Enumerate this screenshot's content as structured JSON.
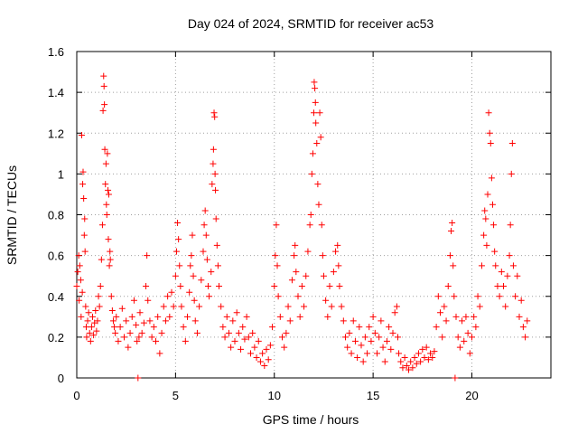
{
  "chart_data": {
    "type": "scatter",
    "title": "Day 024 of 2024, SRMTID for receiver ac53",
    "xlabel": "GPS time / hours",
    "ylabel": "SRMTID / TECUs",
    "xlim": [
      0,
      24
    ],
    "ylim": [
      0,
      1.6
    ],
    "xticks": [
      0,
      5,
      10,
      15,
      20
    ],
    "xtick_labels": [
      "0",
      "5",
      "10",
      "15",
      "20"
    ],
    "yticks": [
      0,
      0.2,
      0.4,
      0.6,
      0.8,
      1,
      1.2,
      1.4,
      1.6
    ],
    "ytick_labels": [
      "0",
      "0.2",
      "0.4",
      "0.6",
      "0.8",
      "1",
      "1.2",
      "1.4",
      "1.6"
    ],
    "grid": true,
    "marker": "+",
    "color": "#ff0000",
    "series": [
      {
        "name": "SRMTID",
        "points": [
          [
            0.0,
            0.45
          ],
          [
            0.05,
            0.52
          ],
          [
            0.1,
            0.6
          ],
          [
            0.12,
            0.38
          ],
          [
            0.15,
            0.55
          ],
          [
            0.2,
            0.48
          ],
          [
            0.22,
            0.3
          ],
          [
            0.25,
            1.19
          ],
          [
            0.28,
            0.42
          ],
          [
            0.3,
            0.95
          ],
          [
            0.32,
            1.01
          ],
          [
            0.35,
            0.88
          ],
          [
            0.38,
            0.7
          ],
          [
            0.4,
            0.78
          ],
          [
            0.42,
            0.62
          ],
          [
            0.45,
            0.35
          ],
          [
            0.48,
            0.25
          ],
          [
            0.5,
            0.2
          ],
          [
            0.55,
            0.28
          ],
          [
            0.6,
            0.32
          ],
          [
            0.65,
            0.22
          ],
          [
            0.7,
            0.18
          ],
          [
            0.75,
            0.25
          ],
          [
            0.8,
            0.3
          ],
          [
            0.85,
            0.21
          ],
          [
            0.9,
            0.27
          ],
          [
            0.95,
            0.33
          ],
          [
            1.0,
            0.23
          ],
          [
            1.05,
            0.28
          ],
          [
            1.1,
            0.4
          ],
          [
            1.15,
            0.35
          ],
          [
            1.2,
            0.45
          ],
          [
            1.25,
            0.58
          ],
          [
            1.3,
            0.75
          ],
          [
            1.33,
            1.31
          ],
          [
            1.36,
            1.48
          ],
          [
            1.38,
            1.43
          ],
          [
            1.4,
            1.34
          ],
          [
            1.42,
            1.12
          ],
          [
            1.45,
            0.95
          ],
          [
            1.48,
            1.05
          ],
          [
            1.5,
            0.85
          ],
          [
            1.52,
            0.8
          ],
          [
            1.55,
            1.1
          ],
          [
            1.58,
            0.92
          ],
          [
            1.6,
            0.68
          ],
          [
            1.62,
            0.9
          ],
          [
            1.65,
            0.55
          ],
          [
            1.68,
            0.62
          ],
          [
            1.7,
            0.58
          ],
          [
            1.75,
            0.4
          ],
          [
            1.8,
            0.33
          ],
          [
            1.85,
            0.28
          ],
          [
            1.9,
            0.25
          ],
          [
            1.95,
            0.22
          ],
          [
            2.0,
            0.3
          ],
          [
            2.1,
            0.18
          ],
          [
            2.2,
            0.25
          ],
          [
            2.3,
            0.34
          ],
          [
            2.4,
            0.2
          ],
          [
            2.5,
            0.28
          ],
          [
            2.6,
            0.15
          ],
          [
            2.7,
            0.22
          ],
          [
            2.8,
            0.3
          ],
          [
            2.9,
            0.38
          ],
          [
            3.0,
            0.26
          ],
          [
            3.05,
            0.18
          ],
          [
            3.1,
            0.0
          ],
          [
            3.15,
            0.2
          ],
          [
            3.2,
            0.32
          ],
          [
            3.3,
            0.22
          ],
          [
            3.4,
            0.27
          ],
          [
            3.5,
            0.45
          ],
          [
            3.55,
            0.6
          ],
          [
            3.6,
            0.38
          ],
          [
            3.7,
            0.28
          ],
          [
            3.8,
            0.2
          ],
          [
            3.9,
            0.25
          ],
          [
            4.0,
            0.18
          ],
          [
            4.1,
            0.3
          ],
          [
            4.2,
            0.12
          ],
          [
            4.3,
            0.22
          ],
          [
            4.4,
            0.35
          ],
          [
            4.5,
            0.28
          ],
          [
            4.6,
            0.4
          ],
          [
            4.7,
            0.3
          ],
          [
            4.8,
            0.42
          ],
          [
            4.9,
            0.35
          ],
          [
            5.0,
            0.5
          ],
          [
            5.05,
            0.62
          ],
          [
            5.1,
            0.76
          ],
          [
            5.15,
            0.68
          ],
          [
            5.2,
            0.55
          ],
          [
            5.25,
            0.45
          ],
          [
            5.3,
            0.35
          ],
          [
            5.4,
            0.25
          ],
          [
            5.5,
            0.18
          ],
          [
            5.6,
            0.3
          ],
          [
            5.7,
            0.42
          ],
          [
            5.75,
            0.55
          ],
          [
            5.8,
            0.6
          ],
          [
            5.85,
            0.7
          ],
          [
            5.9,
            0.5
          ],
          [
            5.95,
            0.38
          ],
          [
            6.0,
            0.28
          ],
          [
            6.1,
            0.22
          ],
          [
            6.2,
            0.35
          ],
          [
            6.3,
            0.48
          ],
          [
            6.4,
            0.62
          ],
          [
            6.45,
            0.75
          ],
          [
            6.5,
            0.82
          ],
          [
            6.55,
            0.7
          ],
          [
            6.6,
            0.58
          ],
          [
            6.65,
            0.45
          ],
          [
            6.7,
            0.4
          ],
          [
            6.8,
            0.52
          ],
          [
            6.85,
            0.95
          ],
          [
            6.9,
            1.05
          ],
          [
            6.92,
            1.12
          ],
          [
            6.95,
            1.3
          ],
          [
            6.98,
            1.28
          ],
          [
            7.0,
            1.0
          ],
          [
            7.02,
            0.92
          ],
          [
            7.05,
            0.78
          ],
          [
            7.1,
            0.65
          ],
          [
            7.15,
            0.55
          ],
          [
            7.2,
            0.45
          ],
          [
            7.3,
            0.35
          ],
          [
            7.4,
            0.25
          ],
          [
            7.5,
            0.2
          ],
          [
            7.6,
            0.3
          ],
          [
            7.7,
            0.22
          ],
          [
            7.8,
            0.15
          ],
          [
            7.9,
            0.28
          ],
          [
            8.0,
            0.18
          ],
          [
            8.1,
            0.32
          ],
          [
            8.2,
            0.22
          ],
          [
            8.3,
            0.14
          ],
          [
            8.4,
            0.25
          ],
          [
            8.5,
            0.19
          ],
          [
            8.6,
            0.3
          ],
          [
            8.7,
            0.2
          ],
          [
            8.8,
            0.12
          ],
          [
            8.9,
            0.22
          ],
          [
            9.0,
            0.15
          ],
          [
            9.1,
            0.1
          ],
          [
            9.2,
            0.18
          ],
          [
            9.3,
            0.08
          ],
          [
            9.4,
            0.12
          ],
          [
            9.5,
            0.06
          ],
          [
            9.6,
            0.14
          ],
          [
            9.7,
            0.09
          ],
          [
            9.8,
            0.16
          ],
          [
            9.9,
            0.25
          ],
          [
            10.0,
            0.45
          ],
          [
            10.05,
            0.6
          ],
          [
            10.1,
            0.75
          ],
          [
            10.15,
            0.55
          ],
          [
            10.2,
            0.4
          ],
          [
            10.3,
            0.3
          ],
          [
            10.4,
            0.2
          ],
          [
            10.5,
            0.15
          ],
          [
            10.6,
            0.22
          ],
          [
            10.7,
            0.35
          ],
          [
            10.8,
            0.28
          ],
          [
            10.9,
            0.48
          ],
          [
            11.0,
            0.6
          ],
          [
            11.05,
            0.65
          ],
          [
            11.1,
            0.52
          ],
          [
            11.2,
            0.4
          ],
          [
            11.3,
            0.3
          ],
          [
            11.4,
            0.45
          ],
          [
            11.5,
            0.35
          ],
          [
            11.6,
            0.5
          ],
          [
            11.7,
            0.62
          ],
          [
            11.8,
            0.75
          ],
          [
            11.85,
            0.8
          ],
          [
            11.9,
            1.0
          ],
          [
            11.95,
            1.1
          ],
          [
            12.0,
            1.3
          ],
          [
            12.02,
            1.45
          ],
          [
            12.05,
            1.42
          ],
          [
            12.08,
            1.35
          ],
          [
            12.1,
            1.25
          ],
          [
            12.15,
            1.15
          ],
          [
            12.2,
            0.95
          ],
          [
            12.25,
            0.85
          ],
          [
            12.3,
            1.3
          ],
          [
            12.35,
            1.18
          ],
          [
            12.4,
            0.75
          ],
          [
            12.45,
            0.6
          ],
          [
            12.5,
            0.5
          ],
          [
            12.6,
            0.38
          ],
          [
            12.7,
            0.3
          ],
          [
            12.8,
            0.45
          ],
          [
            12.9,
            0.35
          ],
          [
            13.0,
            0.52
          ],
          [
            13.1,
            0.62
          ],
          [
            13.2,
            0.65
          ],
          [
            13.25,
            0.55
          ],
          [
            13.3,
            0.45
          ],
          [
            13.4,
            0.35
          ],
          [
            13.5,
            0.28
          ],
          [
            13.6,
            0.2
          ],
          [
            13.7,
            0.15
          ],
          [
            13.8,
            0.22
          ],
          [
            13.9,
            0.12
          ],
          [
            14.0,
            0.28
          ],
          [
            14.1,
            0.18
          ],
          [
            14.2,
            0.1
          ],
          [
            14.3,
            0.25
          ],
          [
            14.4,
            0.16
          ],
          [
            14.5,
            0.08
          ],
          [
            14.6,
            0.2
          ],
          [
            14.7,
            0.12
          ],
          [
            14.8,
            0.25
          ],
          [
            14.9,
            0.18
          ],
          [
            15.0,
            0.3
          ],
          [
            15.1,
            0.22
          ],
          [
            15.2,
            0.12
          ],
          [
            15.3,
            0.2
          ],
          [
            15.4,
            0.28
          ],
          [
            15.5,
            0.15
          ],
          [
            15.6,
            0.08
          ],
          [
            15.7,
            0.18
          ],
          [
            15.8,
            0.25
          ],
          [
            15.9,
            0.14
          ],
          [
            16.0,
            0.22
          ],
          [
            16.1,
            0.32
          ],
          [
            16.2,
            0.35
          ],
          [
            16.25,
            0.2
          ],
          [
            16.3,
            0.12
          ],
          [
            16.4,
            0.08
          ],
          [
            16.5,
            0.05
          ],
          [
            16.6,
            0.1
          ],
          [
            16.7,
            0.06
          ],
          [
            16.8,
            0.04
          ],
          [
            16.9,
            0.08
          ],
          [
            17.0,
            0.05
          ],
          [
            17.1,
            0.1
          ],
          [
            17.2,
            0.07
          ],
          [
            17.3,
            0.12
          ],
          [
            17.4,
            0.08
          ],
          [
            17.5,
            0.14
          ],
          [
            17.6,
            0.1
          ],
          [
            17.7,
            0.15
          ],
          [
            17.8,
            0.09
          ],
          [
            17.9,
            0.12
          ],
          [
            18.0,
            0.1
          ],
          [
            18.1,
            0.13
          ],
          [
            18.2,
            0.25
          ],
          [
            18.3,
            0.4
          ],
          [
            18.4,
            0.32
          ],
          [
            18.5,
            0.2
          ],
          [
            18.6,
            0.35
          ],
          [
            18.7,
            0.28
          ],
          [
            18.8,
            0.45
          ],
          [
            18.9,
            0.6
          ],
          [
            18.95,
            0.72
          ],
          [
            19.0,
            0.76
          ],
          [
            19.05,
            0.55
          ],
          [
            19.1,
            0.4
          ],
          [
            19.15,
            0.0
          ],
          [
            19.2,
            0.3
          ],
          [
            19.3,
            0.2
          ],
          [
            19.4,
            0.15
          ],
          [
            19.5,
            0.28
          ],
          [
            19.6,
            0.18
          ],
          [
            19.7,
            0.3
          ],
          [
            19.8,
            0.22
          ],
          [
            19.9,
            0.12
          ],
          [
            20.0,
            0.2
          ],
          [
            20.1,
            0.3
          ],
          [
            20.2,
            0.25
          ],
          [
            20.3,
            0.4
          ],
          [
            20.4,
            0.35
          ],
          [
            20.5,
            0.55
          ],
          [
            20.6,
            0.7
          ],
          [
            20.65,
            0.82
          ],
          [
            20.7,
            0.78
          ],
          [
            20.75,
            0.65
          ],
          [
            20.8,
            0.9
          ],
          [
            20.85,
            1.3
          ],
          [
            20.9,
            1.2
          ],
          [
            20.95,
            1.15
          ],
          [
            21.0,
            0.98
          ],
          [
            21.05,
            0.85
          ],
          [
            21.1,
            0.75
          ],
          [
            21.15,
            0.62
          ],
          [
            21.2,
            0.55
          ],
          [
            21.3,
            0.45
          ],
          [
            21.4,
            0.4
          ],
          [
            21.5,
            0.52
          ],
          [
            21.6,
            0.45
          ],
          [
            21.7,
            0.35
          ],
          [
            21.8,
            0.5
          ],
          [
            21.9,
            0.6
          ],
          [
            21.95,
            0.75
          ],
          [
            22.0,
            1.0
          ],
          [
            22.05,
            1.15
          ],
          [
            22.1,
            0.55
          ],
          [
            22.2,
            0.4
          ],
          [
            22.3,
            0.5
          ],
          [
            22.4,
            0.3
          ],
          [
            22.5,
            0.38
          ],
          [
            22.6,
            0.25
          ],
          [
            22.7,
            0.2
          ],
          [
            22.8,
            0.28
          ]
        ]
      }
    ]
  }
}
